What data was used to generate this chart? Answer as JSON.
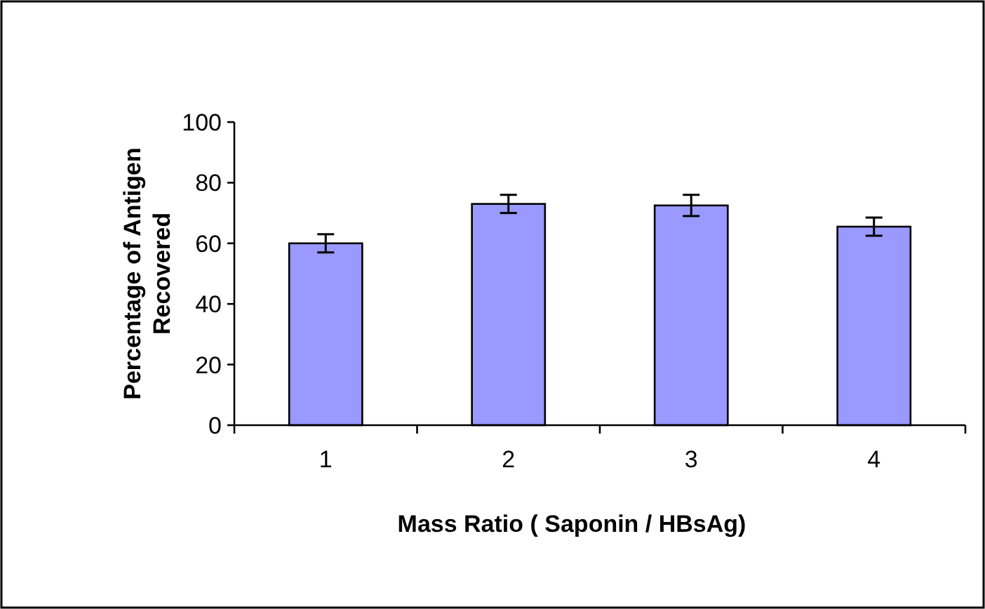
{
  "chart_data": {
    "type": "bar",
    "xlabel": "Mass Ratio ( Saponin / HBsAg)",
    "ylabel": "Percentage of Antigen Recovered",
    "categories": [
      "1",
      "2",
      "3",
      "4"
    ],
    "values": [
      60,
      73,
      72.5,
      65.5
    ],
    "errors": [
      3,
      3,
      3.5,
      3
    ],
    "color": "#9999ff",
    "ylim": [
      0,
      100
    ],
    "yticks": [
      0,
      20,
      40,
      60,
      80,
      100
    ],
    "grid": false
  }
}
